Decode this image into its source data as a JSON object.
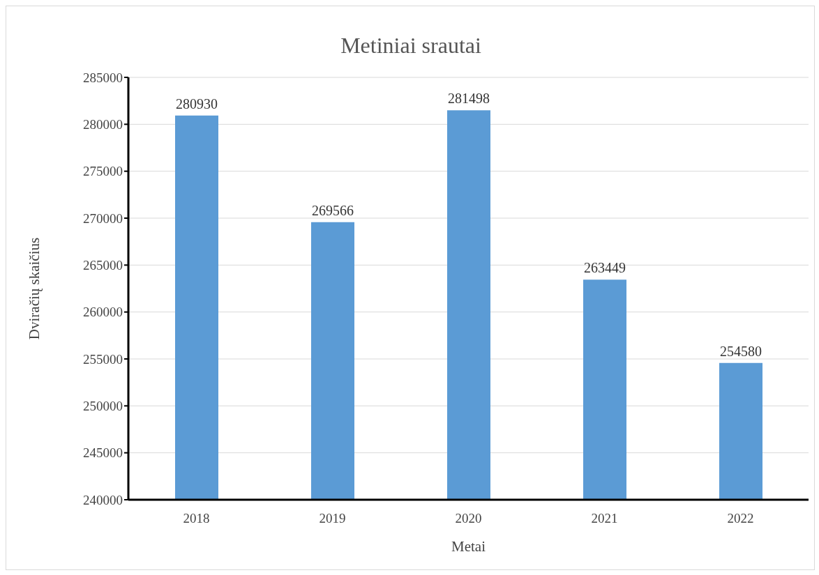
{
  "chart_data": {
    "type": "bar",
    "title": "Metiniai srautai",
    "xlabel": "Metai",
    "ylabel": "Dviračių skaičius",
    "categories": [
      "2018",
      "2019",
      "2020",
      "2021",
      "2022"
    ],
    "values": [
      280930,
      269566,
      281498,
      263449,
      254580
    ],
    "color": "#5b9bd5",
    "ylim": [
      240000,
      285000
    ],
    "yticks": [
      240000,
      245000,
      250000,
      255000,
      260000,
      265000,
      270000,
      275000,
      280000,
      285000
    ],
    "grid": "y",
    "data_labels": true
  }
}
